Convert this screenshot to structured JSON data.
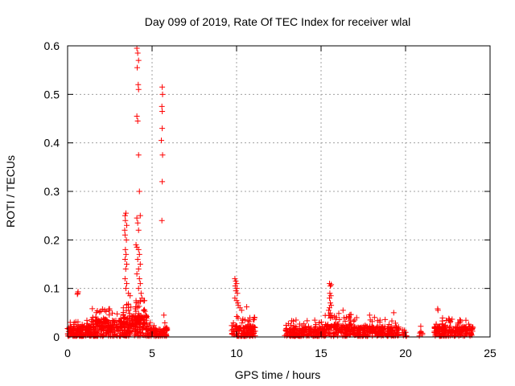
{
  "chart_data": {
    "type": "scatter",
    "title": "Day 099 of 2019, Rate Of TEC Index for receiver wlal",
    "xlabel": "GPS time / hours",
    "ylabel": "ROTI / TECUs",
    "xlim": [
      0,
      25
    ],
    "ylim": [
      0,
      0.6
    ],
    "xticks": [
      0,
      5,
      10,
      15,
      20,
      25
    ],
    "yticks": [
      0,
      0.1,
      0.2,
      0.3,
      0.4,
      0.5,
      0.6
    ],
    "grid": true,
    "marker": "+",
    "series_color": "#ff0000",
    "clusters": [
      {
        "x": [
          0.0,
          1.4
        ],
        "max": 0.035,
        "median": 0.012,
        "n": 140
      },
      {
        "x": [
          1.4,
          3.2
        ],
        "max": 0.06,
        "median": 0.02,
        "n": 200
      },
      {
        "x": [
          3.2,
          4.7
        ],
        "max": 0.075,
        "median": 0.025,
        "n": 200
      },
      {
        "x": [
          4.7,
          5.9
        ],
        "max": 0.03,
        "median": 0.01,
        "n": 90
      },
      {
        "x": [
          9.7,
          11.1
        ],
        "max": 0.045,
        "median": 0.013,
        "n": 140
      },
      {
        "x": [
          12.8,
          15.2
        ],
        "max": 0.035,
        "median": 0.01,
        "n": 190
      },
      {
        "x": [
          15.2,
          16.8
        ],
        "max": 0.05,
        "median": 0.015,
        "n": 140
      },
      {
        "x": [
          16.8,
          19.6
        ],
        "max": 0.045,
        "median": 0.012,
        "n": 220
      },
      {
        "x": [
          19.8,
          20.1
        ],
        "max": 0.015,
        "median": 0.008,
        "n": 12
      },
      {
        "x": [
          20.8,
          21.0
        ],
        "max": 0.012,
        "median": 0.006,
        "n": 6
      },
      {
        "x": [
          21.7,
          24.0
        ],
        "max": 0.04,
        "median": 0.012,
        "n": 190
      }
    ],
    "points": [
      [
        0.6,
        0.09
      ],
      [
        0.62,
        0.093
      ],
      [
        0.58,
        0.088
      ],
      [
        3.4,
        0.25
      ],
      [
        3.42,
        0.24
      ],
      [
        3.45,
        0.255
      ],
      [
        3.5,
        0.23
      ],
      [
        3.38,
        0.22
      ],
      [
        3.4,
        0.21
      ],
      [
        3.48,
        0.2
      ],
      [
        3.42,
        0.18
      ],
      [
        3.46,
        0.17
      ],
      [
        3.4,
        0.16
      ],
      [
        3.5,
        0.15
      ],
      [
        3.44,
        0.14
      ],
      [
        3.4,
        0.12
      ],
      [
        3.5,
        0.11
      ],
      [
        3.45,
        0.1
      ],
      [
        3.6,
        0.09
      ],
      [
        3.7,
        0.085
      ],
      [
        4.1,
        0.595
      ],
      [
        4.15,
        0.585
      ],
      [
        4.2,
        0.57
      ],
      [
        4.12,
        0.555
      ],
      [
        4.18,
        0.52
      ],
      [
        4.2,
        0.51
      ],
      [
        4.1,
        0.455
      ],
      [
        4.15,
        0.445
      ],
      [
        4.2,
        0.375
      ],
      [
        4.25,
        0.3
      ],
      [
        4.3,
        0.25
      ],
      [
        4.1,
        0.245
      ],
      [
        4.15,
        0.235
      ],
      [
        4.2,
        0.22
      ],
      [
        4.05,
        0.19
      ],
      [
        4.1,
        0.185
      ],
      [
        4.2,
        0.18
      ],
      [
        4.25,
        0.17
      ],
      [
        4.15,
        0.16
      ],
      [
        4.3,
        0.15
      ],
      [
        4.2,
        0.14
      ],
      [
        4.1,
        0.13
      ],
      [
        4.25,
        0.12
      ],
      [
        4.3,
        0.11
      ],
      [
        4.2,
        0.1
      ],
      [
        4.35,
        0.09
      ],
      [
        4.4,
        0.08
      ],
      [
        4.3,
        0.075
      ],
      [
        4.15,
        0.07
      ],
      [
        5.6,
        0.515
      ],
      [
        5.62,
        0.5
      ],
      [
        5.58,
        0.475
      ],
      [
        5.6,
        0.465
      ],
      [
        5.6,
        0.43
      ],
      [
        5.55,
        0.405
      ],
      [
        5.62,
        0.375
      ],
      [
        5.6,
        0.32
      ],
      [
        5.58,
        0.24
      ],
      [
        5.7,
        0.045
      ],
      [
        9.9,
        0.12
      ],
      [
        9.95,
        0.115
      ],
      [
        10.0,
        0.11
      ],
      [
        9.92,
        0.105
      ],
      [
        10.02,
        0.1
      ],
      [
        9.96,
        0.095
      ],
      [
        10.05,
        0.09
      ],
      [
        9.9,
        0.08
      ],
      [
        10.0,
        0.075
      ],
      [
        10.08,
        0.07
      ],
      [
        10.1,
        0.065
      ],
      [
        10.2,
        0.06
      ],
      [
        10.3,
        0.055
      ],
      [
        10.6,
        0.062
      ],
      [
        15.5,
        0.11
      ],
      [
        15.55,
        0.105
      ],
      [
        15.6,
        0.108
      ],
      [
        15.52,
        0.09
      ],
      [
        15.58,
        0.085
      ],
      [
        15.5,
        0.08
      ],
      [
        15.55,
        0.07
      ],
      [
        15.6,
        0.065
      ],
      [
        15.5,
        0.06
      ],
      [
        15.45,
        0.055
      ],
      [
        16.3,
        0.055
      ],
      [
        19.3,
        0.05
      ],
      [
        21.9,
        0.058
      ],
      [
        21.92,
        0.055
      ],
      [
        20.9,
        0.022
      ]
    ]
  }
}
